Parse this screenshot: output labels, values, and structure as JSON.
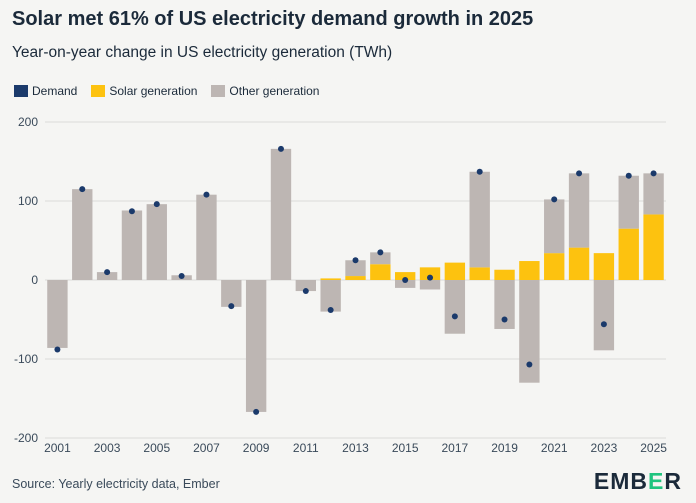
{
  "title": "Solar met 61% of US electricity demand growth in 2025",
  "subtitle": "Year-on-year change in US electricity generation (TWh)",
  "source": "Source: Yearly electricity data, Ember",
  "logo": "EMBER",
  "colors": {
    "demand": "#1b3a6b",
    "solar": "#fdc20f",
    "other": "#bdb6b3",
    "grid": "#dadada",
    "background": "#f5f5f3"
  },
  "chart_data": {
    "type": "bar",
    "title": "Solar met 61% of US electricity demand growth in 2025",
    "subtitle": "Year-on-year change in US electricity generation (TWh)",
    "legend": [
      "Demand",
      "Solar generation",
      "Other generation"
    ],
    "legend_position": "top-left",
    "grid": true,
    "ylim": [
      -200,
      200
    ],
    "yticks": [
      -200,
      -100,
      0,
      100,
      200
    ],
    "x_tick_labels": [
      "2001",
      "2003",
      "2005",
      "2007",
      "2009",
      "2011",
      "2013",
      "2015",
      "2017",
      "2019",
      "2021",
      "2023",
      "2025"
    ],
    "categories": [
      "2001",
      "2002",
      "2003",
      "2004",
      "2005",
      "2006",
      "2007",
      "2008",
      "2009",
      "2010",
      "2011",
      "2012",
      "2013",
      "2014",
      "2015",
      "2016",
      "2017",
      "2018",
      "2019",
      "2020",
      "2021",
      "2022",
      "2023",
      "2024",
      "2025"
    ],
    "series": [
      {
        "name": "Solar generation",
        "values": [
          0,
          0,
          0,
          0,
          0,
          0,
          0,
          0,
          0,
          0,
          0,
          2,
          5,
          20,
          10,
          16,
          22,
          16,
          13,
          24,
          34,
          41,
          34,
          65,
          83
        ]
      },
      {
        "name": "Other generation",
        "values": [
          -86,
          115,
          10,
          88,
          96,
          6,
          108,
          -34,
          -167,
          166,
          -14,
          -40,
          20,
          15,
          -10,
          -12,
          -68,
          121,
          -62,
          -130,
          68,
          94,
          -89,
          67,
          52
        ]
      },
      {
        "name": "Demand",
        "values": [
          -88,
          115,
          10,
          87,
          96,
          5,
          108,
          -33,
          -167,
          166,
          -14,
          -38,
          25,
          35,
          0,
          3,
          -46,
          137,
          -50,
          -107,
          102,
          135,
          -56,
          132,
          135
        ]
      }
    ]
  }
}
